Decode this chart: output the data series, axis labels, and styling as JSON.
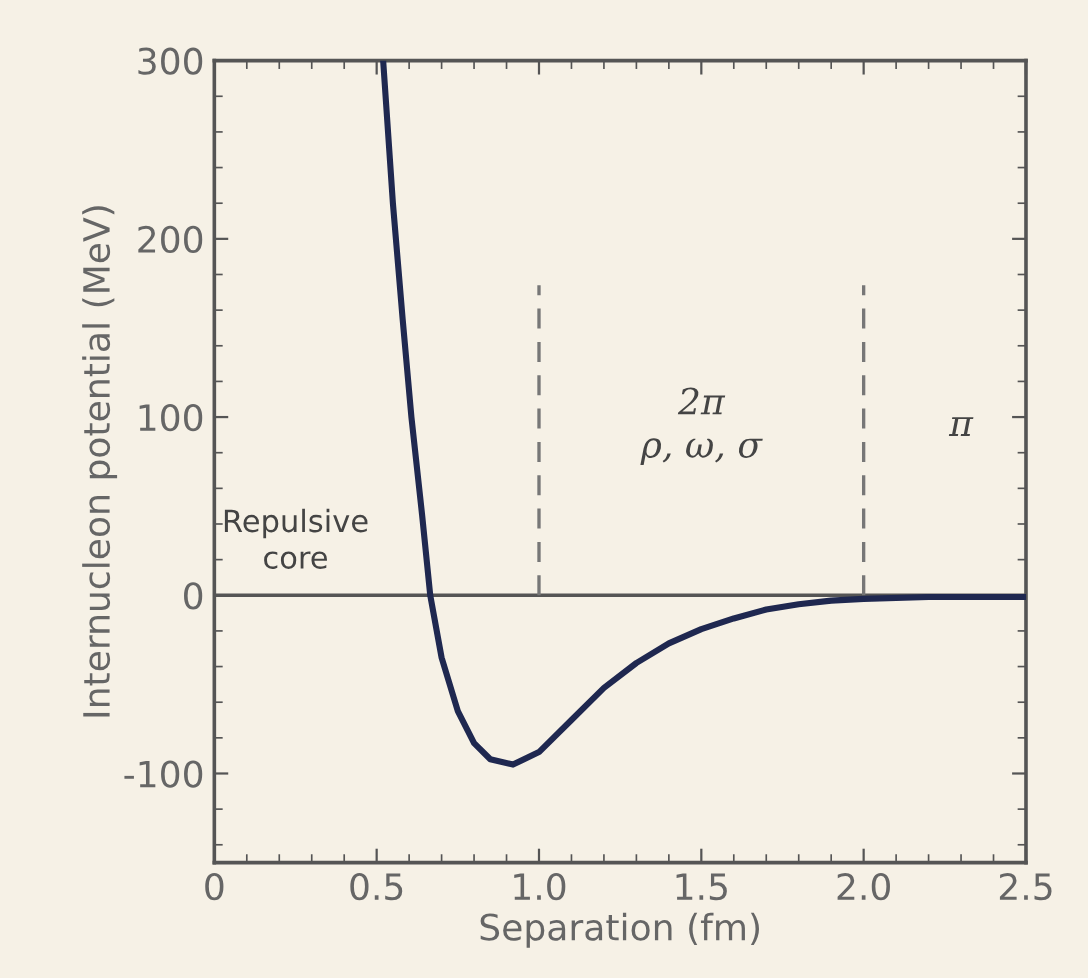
{
  "chart_data": {
    "type": "line",
    "xlabel": "Separation (fm)",
    "ylabel": "Internucleon potential (MeV)",
    "xlim": [
      0,
      2.5
    ],
    "xticks": [
      {
        "value": 0,
        "label": "0"
      },
      0.5,
      {
        "value": 1,
        "label": "1.0"
      },
      1.5,
      {
        "value": 2,
        "label": "2.0"
      },
      2.5
    ],
    "ylim": [
      -150,
      300
    ],
    "yticks": [
      -100,
      0,
      100,
      200,
      300
    ],
    "series": [
      {
        "color": "#1f2850",
        "x": [
          0.52,
          0.55,
          0.58,
          0.607,
          0.64,
          0.665,
          0.7,
          0.75,
          0.8,
          0.85,
          0.92,
          1.0,
          1.1,
          1.2,
          1.3,
          1.4,
          1.5,
          1.6,
          1.7,
          1.8,
          1.9,
          2.0,
          2.2,
          2.5
        ],
        "values": [
          300,
          220,
          155,
          100,
          45,
          0,
          -35,
          -65,
          -83,
          -92,
          -95,
          -88,
          -70,
          -52,
          -38,
          -27,
          -19,
          -13,
          -8,
          -5,
          -3,
          -2,
          -1,
          -1
        ]
      }
    ],
    "ref_lines": [
      {
        "axis": "y",
        "value": 0,
        "color": "#555555",
        "line_style": "solid"
      },
      {
        "axis": "x",
        "value": 1.0,
        "color": "#777777",
        "line_style": "dashed"
      },
      {
        "axis": "x",
        "value": 2.0,
        "color": "#777777",
        "line_style": "dashed"
      }
    ],
    "annotations": [
      "Repulsive\ncore",
      "2π\nρ, ω, σ",
      "π"
    ],
    "grid": false,
    "legend": false,
    "marker": "none",
    "line_style": "solid"
  }
}
